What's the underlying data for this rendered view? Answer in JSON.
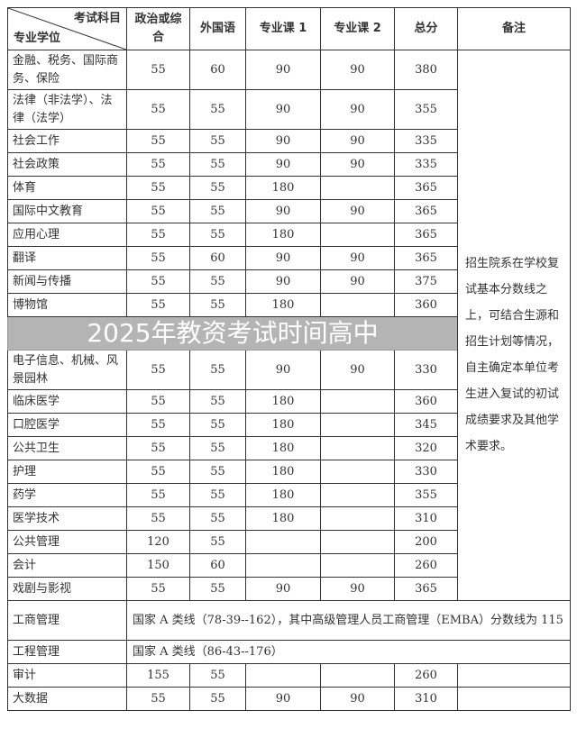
{
  "header": {
    "corner_top": "考试科目",
    "corner_bottom": "专业学位",
    "columns": [
      "政治或综合",
      "外国语",
      "专业课 1",
      "专业课 2",
      "总分",
      "备注"
    ]
  },
  "rows": [
    {
      "name": "金融、税务、国际商务、保险",
      "c": [
        "55",
        "60",
        "90",
        "90",
        "380"
      ]
    },
    {
      "name": "法律（非法学）、法律（法学）",
      "c": [
        "55",
        "55",
        "90",
        "90",
        "355"
      ]
    },
    {
      "name": "社会工作",
      "c": [
        "55",
        "55",
        "90",
        "90",
        "335"
      ]
    },
    {
      "name": "社会政策",
      "c": [
        "55",
        "55",
        "90",
        "90",
        "335"
      ]
    },
    {
      "name": "体育",
      "c": [
        "55",
        "55",
        "180",
        "",
        "365"
      ]
    },
    {
      "name": "国际中文教育",
      "c": [
        "55",
        "55",
        "90",
        "90",
        "365"
      ]
    },
    {
      "name": "应用心理",
      "c": [
        "55",
        "55",
        "180",
        "",
        "365"
      ]
    },
    {
      "name": "翻译",
      "c": [
        "55",
        "60",
        "90",
        "90",
        "365"
      ]
    },
    {
      "name": "新闻与传播",
      "c": [
        "55",
        "55",
        "90",
        "90",
        "375"
      ]
    },
    {
      "name": "博物馆",
      "c": [
        "55",
        "55",
        "180",
        "",
        "360"
      ]
    },
    {
      "name": "电子信息、机械、风景园林",
      "c": [
        "55",
        "55",
        "90",
        "90",
        "330"
      ]
    },
    {
      "name": "临床医学",
      "c": [
        "55",
        "55",
        "180",
        "",
        "360"
      ]
    },
    {
      "name": "口腔医学",
      "c": [
        "55",
        "55",
        "180",
        "",
        "345"
      ]
    },
    {
      "name": "公共卫生",
      "c": [
        "55",
        "55",
        "180",
        "",
        "320"
      ]
    },
    {
      "name": "护理",
      "c": [
        "55",
        "55",
        "180",
        "",
        "330"
      ]
    },
    {
      "name": "药学",
      "c": [
        "55",
        "55",
        "180",
        "",
        "355"
      ]
    },
    {
      "name": "医学技术",
      "c": [
        "55",
        "55",
        "180",
        "",
        "310"
      ]
    },
    {
      "name": "公共管理",
      "c": [
        "120",
        "55",
        "",
        "",
        "200"
      ]
    },
    {
      "name": "会计",
      "c": [
        "150",
        "60",
        "",
        "",
        "260"
      ]
    },
    {
      "name": "戏剧与影视",
      "c": [
        "55",
        "55",
        "90",
        "90",
        "365"
      ]
    }
  ],
  "remark": "招生院系在学校复试基本分数线之上，可结合生源和招生计划等情况，自主确定本单位考生进入复试的初试成绩要求及其他学术要求。",
  "span_rows": [
    {
      "name": "工商管理",
      "text": "国家 A 类线（78-39--162），其中高级管理人员工商管理（EMBA）分数线为 115"
    },
    {
      "name": "工程管理",
      "text": "国家 A 类线（86-43--176）"
    }
  ],
  "tail_rows": [
    {
      "name": "审计",
      "c": [
        "155",
        "55",
        "",
        "",
        "260"
      ]
    },
    {
      "name": "大数据",
      "c": [
        "55",
        "55",
        "90",
        "90",
        "310"
      ]
    }
  ],
  "watermark": "2025年教资考试时间高中"
}
